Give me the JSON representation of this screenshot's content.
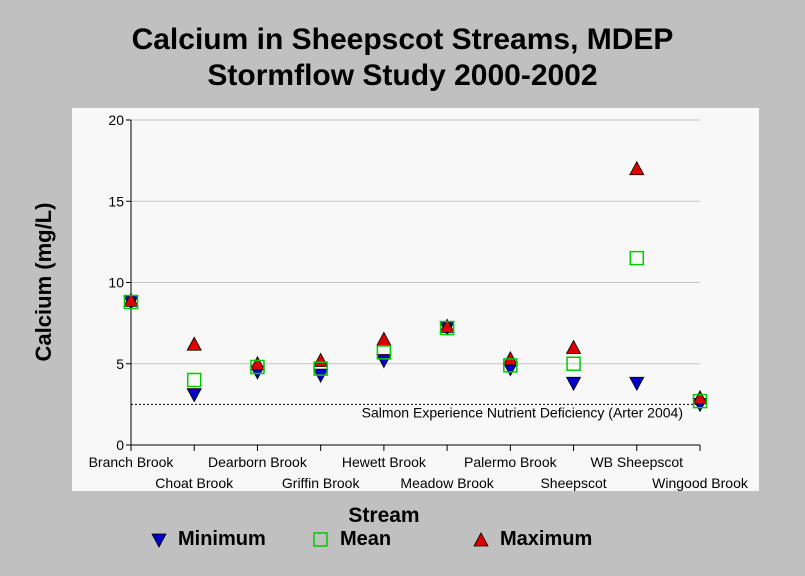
{
  "chart_data": {
    "type": "scatter",
    "title": [
      "Calcium in Sheepscot Streams, MDEP",
      "Stormflow Study 2000-2002"
    ],
    "xlabel": "Stream",
    "ylabel": "Calcium (mg/L)",
    "ylim": [
      0,
      20
    ],
    "yticks": [
      0,
      5,
      10,
      15,
      20
    ],
    "grid": true,
    "legend_position": "bottom",
    "categories": [
      "Branch Brook",
      "Choat Brook",
      "Dearborn Brook",
      "Griffin Brook",
      "Hewett Brook",
      "Meadow Brook",
      "Palermo Brook",
      "Sheepscot",
      "WB Sheepscot",
      "Wingood Brook"
    ],
    "series": [
      {
        "name": "Minimum",
        "marker": "triangle-down",
        "color": "#0000cc",
        "values": [
          8.8,
          3.1,
          4.5,
          4.3,
          5.2,
          7.2,
          4.7,
          3.8,
          3.8,
          2.5
        ]
      },
      {
        "name": "Mean",
        "marker": "square-open",
        "color": "#00cc00",
        "values": [
          8.8,
          4.0,
          4.8,
          4.7,
          5.7,
          7.2,
          4.9,
          5.0,
          11.5,
          2.7
        ]
      },
      {
        "name": "Maximum",
        "marker": "triangle-up",
        "color": "#dd0000",
        "values": [
          8.9,
          6.2,
          5.0,
          5.2,
          6.5,
          7.3,
          5.3,
          6.0,
          17.0,
          2.9
        ]
      }
    ],
    "reference_line": {
      "value": 2.5,
      "label": "Salmon Experience Nutrient Deficiency (Arter 2004)",
      "style": "dotted"
    }
  }
}
